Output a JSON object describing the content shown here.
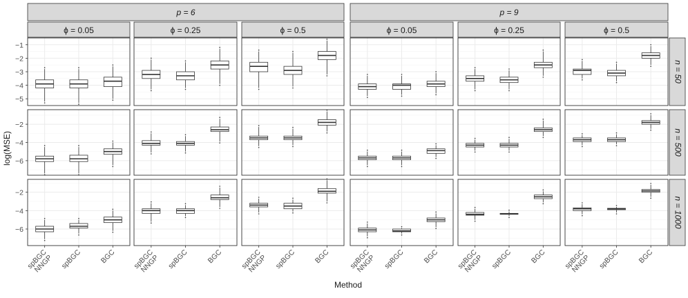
{
  "chart_data": {
    "type": "boxplot",
    "xlabel": "Method",
    "ylabel": "log(MSE)",
    "methods": [
      [
        "spBGC",
        "NNGP"
      ],
      [
        "spBGC"
      ],
      [
        "BGC"
      ]
    ],
    "p_strips": [
      "p = 6",
      "p = 9"
    ],
    "phi_strips": [
      "ϕ = 0.05",
      "ϕ = 0.25",
      "ϕ = 0.5",
      "ϕ = 0.05",
      "ϕ = 0.25",
      "ϕ = 0.5"
    ],
    "rows": [
      {
        "label": "n = 50",
        "ylim": [
          -5.5,
          -0.5
        ],
        "ticks": [
          -1,
          -2,
          -3,
          -4,
          -5
        ],
        "panels": [
          [
            [
              -5.2,
              -4.2,
              -3.9,
              -3.6,
              -2.8
            ],
            [
              -5.3,
              -4.2,
              -3.9,
              -3.6,
              -2.8
            ],
            [
              -5.0,
              -4.1,
              -3.7,
              -3.4,
              -2.6
            ]
          ],
          [
            [
              -4.3,
              -3.5,
              -3.2,
              -2.9,
              -2.1
            ],
            [
              -4.2,
              -3.6,
              -3.3,
              -3.0,
              -2.3
            ],
            [
              -3.9,
              -2.8,
              -2.5,
              -2.2,
              -1.3
            ]
          ],
          [
            [
              -4.2,
              -3.0,
              -2.6,
              -2.3,
              -1.5
            ],
            [
              -4.1,
              -3.2,
              -2.9,
              -2.6,
              -1.6
            ],
            [
              -3.2,
              -2.1,
              -1.8,
              -1.5,
              -0.7
            ]
          ],
          [
            [
              -4.8,
              -4.3,
              -4.1,
              -3.9,
              -3.3
            ],
            [
              -4.7,
              -4.3,
              -4.0,
              -3.9,
              -3.3
            ],
            [
              -4.6,
              -4.1,
              -3.9,
              -3.7,
              -3.1
            ]
          ],
          [
            [
              -4.3,
              -3.7,
              -3.5,
              -3.3,
              -2.8
            ],
            [
              -4.3,
              -3.8,
              -3.6,
              -3.4,
              -2.9
            ],
            [
              -3.3,
              -2.7,
              -2.5,
              -2.3,
              -1.5
            ]
          ],
          [
            [
              -3.5,
              -3.2,
              -2.9,
              -2.8,
              -2.2
            ],
            [
              -3.7,
              -3.3,
              -3.1,
              -2.9,
              -2.4
            ],
            [
              -2.5,
              -2.0,
              -1.8,
              -1.6,
              -1.1
            ]
          ]
        ]
      },
      {
        "label": "n = 500",
        "ylim": [
          -7.6,
          -0.4
        ],
        "ticks": [
          -2,
          -4,
          -6
        ],
        "panels": [
          [
            [
              -7.4,
              -6.1,
              -5.8,
              -5.5,
              -4.5
            ],
            [
              -7.4,
              -6.1,
              -5.8,
              -5.4,
              -4.5
            ],
            [
              -6.5,
              -5.3,
              -5.0,
              -4.7,
              -4.0
            ]
          ],
          [
            [
              -5.1,
              -4.3,
              -4.1,
              -3.8,
              -3.0
            ],
            [
              -5.0,
              -4.3,
              -4.1,
              -3.9,
              -3.3
            ],
            [
              -3.9,
              -2.8,
              -2.6,
              -2.3,
              -1.4
            ]
          ],
          [
            [
              -4.4,
              -3.7,
              -3.5,
              -3.3,
              -2.3
            ],
            [
              -4.3,
              -3.7,
              -3.5,
              -3.3,
              -2.5
            ],
            [
              -2.8,
              -2.1,
              -1.8,
              -1.5,
              -0.6
            ]
          ],
          [
            [
              -6.5,
              -5.9,
              -5.7,
              -5.5,
              -5.0
            ],
            [
              -6.5,
              -5.9,
              -5.7,
              -5.5,
              -5.0
            ],
            [
              -5.6,
              -5.2,
              -4.9,
              -4.7,
              -4.3
            ]
          ],
          [
            [
              -4.9,
              -4.5,
              -4.3,
              -4.1,
              -3.7
            ],
            [
              -4.9,
              -4.5,
              -4.3,
              -4.1,
              -3.6
            ],
            [
              -3.3,
              -2.8,
              -2.6,
              -2.4,
              -1.6
            ]
          ],
          [
            [
              -4.3,
              -3.9,
              -3.7,
              -3.5,
              -3.2
            ],
            [
              -4.2,
              -3.9,
              -3.7,
              -3.5,
              -3.1
            ],
            [
              -2.5,
              -2.0,
              -1.8,
              -1.6,
              -1.0
            ]
          ]
        ]
      },
      {
        "label": "n = 1000",
        "ylim": [
          -7.8,
          -0.6
        ],
        "ticks": [
          -2,
          -4,
          -6
        ],
        "panels": [
          [
            [
              -7.1,
              -6.3,
              -6.0,
              -5.7,
              -5.0
            ],
            [
              -6.5,
              -5.9,
              -5.7,
              -5.4,
              -5.0
            ],
            [
              -6.2,
              -5.3,
              -5.0,
              -4.7,
              -4.0
            ]
          ],
          [
            [
              -5.2,
              -4.3,
              -4.0,
              -3.8,
              -3.2
            ],
            [
              -4.6,
              -4.3,
              -4.0,
              -3.8,
              -3.4
            ],
            [
              -3.6,
              -2.8,
              -2.6,
              -2.3,
              -1.5
            ]
          ],
          [
            [
              -4.2,
              -3.6,
              -3.4,
              -3.2,
              -2.7
            ],
            [
              -4.1,
              -3.8,
              -3.5,
              -3.2,
              -2.8
            ],
            [
              -3.0,
              -2.1,
              -1.9,
              -1.6,
              -0.7
            ]
          ],
          [
            [
              -6.8,
              -6.3,
              -6.1,
              -5.9,
              -5.4
            ],
            [
              -6.5,
              -6.3,
              -6.2,
              -6.0,
              -5.9
            ],
            [
              -5.8,
              -5.2,
              -5.0,
              -4.8,
              -4.3
            ]
          ],
          [
            [
              -5.0,
              -4.5,
              -4.4,
              -4.2,
              -3.8
            ],
            [
              -4.6,
              -4.4,
              -4.35,
              -4.3,
              -4.1
            ],
            [
              -3.1,
              -2.7,
              -2.5,
              -2.3,
              -1.9
            ]
          ],
          [
            [
              -4.4,
              -4.0,
              -3.8,
              -3.7,
              -3.3
            ],
            [
              -4.2,
              -3.9,
              -3.8,
              -3.75,
              -3.6
            ],
            [
              -2.5,
              -2.0,
              -1.85,
              -1.7,
              -1.2
            ]
          ]
        ]
      }
    ],
    "colors": {
      "strip_fill": "#d9d9d9",
      "panel_border": "#333333",
      "grid_major": "#ebebeb",
      "grid_minor": "#f5f5f5",
      "box_fill": "#ffffff",
      "box_stroke": "#333333",
      "text": "#1a1a1a",
      "tick_text": "#4d4d4d"
    }
  }
}
